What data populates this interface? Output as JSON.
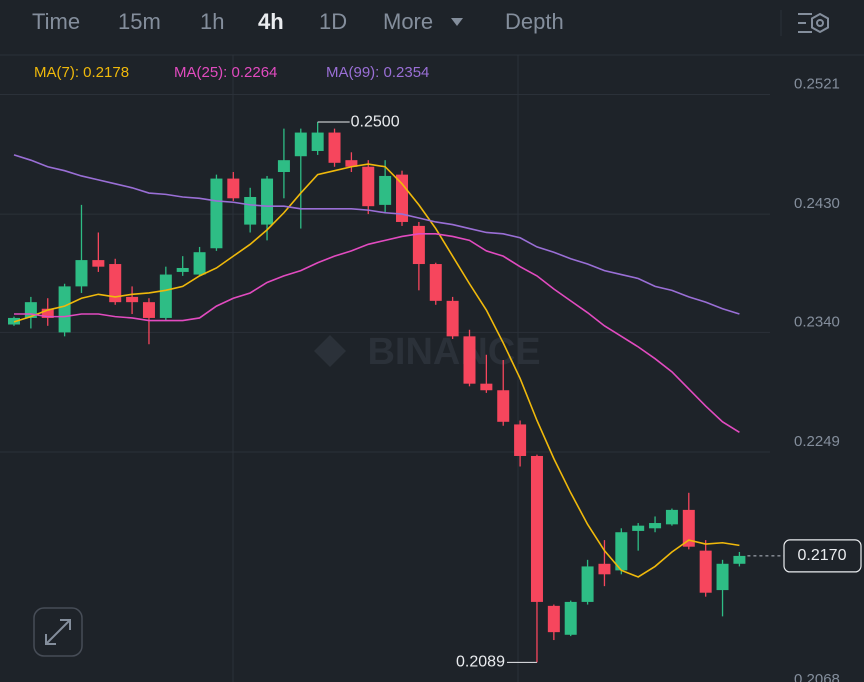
{
  "toolbar": {
    "items": [
      {
        "label": "Time",
        "active": false
      },
      {
        "label": "15m",
        "active": false
      },
      {
        "label": "1h",
        "active": false
      },
      {
        "label": "4h",
        "active": true
      },
      {
        "label": "1D",
        "active": false
      },
      {
        "label": "More",
        "active": false
      },
      {
        "label": "Depth",
        "active": false
      }
    ]
  },
  "watermark": "BINANCE",
  "chart_data": {
    "type": "candlestick",
    "up_color": "#2ebd85",
    "down_color": "#f6465d",
    "open": [
      0.2346,
      0.2351,
      0.2358,
      0.234,
      0.2375,
      0.2395,
      0.2392,
      0.2367,
      0.2363,
      0.2351,
      0.2386,
      0.2384,
      0.2404,
      0.2457,
      0.2422,
      0.2422,
      0.2462,
      0.2474,
      0.2478,
      0.2492,
      0.2471,
      0.2466,
      0.2437,
      0.246,
      0.2421,
      0.2392,
      0.2364,
      0.2337,
      0.2301,
      0.2296,
      0.227,
      0.2246,
      0.2132,
      0.211,
      0.2135,
      0.2164,
      0.2159,
      0.2189,
      0.2191,
      0.2194,
      0.2205,
      0.2174,
      0.2144,
      0.2164
    ],
    "high": [
      0.2352,
      0.2367,
      0.2366,
      0.2377,
      0.2437,
      0.2416,
      0.2396,
      0.2375,
      0.2366,
      0.239,
      0.2398,
      0.2405,
      0.246,
      0.2462,
      0.245,
      0.2459,
      0.2495,
      0.2495,
      0.25,
      0.2495,
      0.2477,
      0.2471,
      0.2471,
      0.2463,
      0.2424,
      0.2393,
      0.2367,
      0.2342,
      0.2323,
      0.2319,
      0.2273,
      0.2247,
      0.2133,
      0.2136,
      0.2167,
      0.2182,
      0.2191,
      0.2195,
      0.22,
      0.2206,
      0.2218,
      0.2182,
      0.2167,
      0.2173
    ],
    "low": [
      0.2345,
      0.2343,
      0.2345,
      0.2337,
      0.237,
      0.2386,
      0.2361,
      0.2354,
      0.2331,
      0.2349,
      0.2383,
      0.2383,
      0.2402,
      0.244,
      0.2416,
      0.241,
      0.2442,
      0.2419,
      0.2475,
      0.2466,
      0.2462,
      0.243,
      0.2431,
      0.2421,
      0.2372,
      0.2361,
      0.2335,
      0.2299,
      0.2294,
      0.2269,
      0.2238,
      0.2089,
      0.2106,
      0.2109,
      0.2133,
      0.2147,
      0.2156,
      0.2174,
      0.2188,
      0.2193,
      0.2175,
      0.2139,
      0.2124,
      0.2162
    ],
    "close": [
      0.2351,
      0.2363,
      0.2351,
      0.2375,
      0.2395,
      0.239,
      0.2363,
      0.2363,
      0.2351,
      0.2384,
      0.2389,
      0.2401,
      0.2457,
      0.2442,
      0.2443,
      0.2457,
      0.2471,
      0.2492,
      0.2492,
      0.2469,
      0.2466,
      0.2436,
      0.2459,
      0.2424,
      0.2392,
      0.2364,
      0.2337,
      0.2301,
      0.2296,
      0.2272,
      0.2246,
      0.2135,
      0.2112,
      0.2135,
      0.2162,
      0.2156,
      0.2188,
      0.2193,
      0.2195,
      0.2205,
      0.2177,
      0.2142,
      0.2164,
      0.217
    ],
    "series": [
      {
        "name": "MA(7): 0.2178",
        "color": "#f0b90b",
        "values": [
          0.2348,
          0.2352,
          0.2357,
          0.236,
          0.2366,
          0.2369,
          0.2367,
          0.2369,
          0.237,
          0.2372,
          0.2375,
          0.2383,
          0.2389,
          0.2398,
          0.2407,
          0.2418,
          0.2431,
          0.2446,
          0.246,
          0.2463,
          0.2466,
          0.2468,
          0.2466,
          0.2453,
          0.2437,
          0.2419,
          0.2398,
          0.2377,
          0.2357,
          0.2332,
          0.2305,
          0.2273,
          0.2244,
          0.2218,
          0.2194,
          0.2174,
          0.2159,
          0.2154,
          0.2162,
          0.2173,
          0.2182,
          0.2179,
          0.218,
          0.2178
        ]
      },
      {
        "name": "MA(25): 0.2264",
        "color": "#e24bc0",
        "values": [
          0.2354,
          0.2354,
          0.2352,
          0.2352,
          0.2354,
          0.2354,
          0.2352,
          0.2351,
          0.2349,
          0.2349,
          0.2349,
          0.2351,
          0.236,
          0.2366,
          0.237,
          0.2378,
          0.2383,
          0.2387,
          0.2393,
          0.2398,
          0.2402,
          0.2407,
          0.241,
          0.2413,
          0.2415,
          0.2415,
          0.2413,
          0.241,
          0.2402,
          0.2398,
          0.239,
          0.2383,
          0.2373,
          0.2364,
          0.2355,
          0.2345,
          0.2337,
          0.2329,
          0.232,
          0.231,
          0.2297,
          0.2284,
          0.2272,
          0.2264
        ]
      },
      {
        "name": "MA(99): 0.2354",
        "color": "#9a6fd6",
        "values": [
          0.2475,
          0.2471,
          0.2466,
          0.2463,
          0.2459,
          0.2456,
          0.2453,
          0.245,
          0.2446,
          0.2445,
          0.2443,
          0.2442,
          0.244,
          0.2439,
          0.2437,
          0.2436,
          0.2436,
          0.2434,
          0.2434,
          0.2434,
          0.2434,
          0.2433,
          0.2431,
          0.243,
          0.2427,
          0.2424,
          0.2422,
          0.2419,
          0.2416,
          0.2415,
          0.2412,
          0.2405,
          0.2401,
          0.2396,
          0.2392,
          0.2387,
          0.2384,
          0.2381,
          0.2375,
          0.2372,
          0.2367,
          0.2363,
          0.2358,
          0.2354
        ]
      }
    ],
    "annotations": [
      {
        "value": 0.25,
        "label": "0.2500"
      },
      {
        "value": 0.2089,
        "label": "0.2089"
      }
    ],
    "last_price": {
      "value": 0.217,
      "label": "0.2170"
    },
    "ylim": [
      0.2068,
      0.2551
    ],
    "yticks": [
      0.2521,
      {
        "value": 0.243,
        "label": "0.2430"
      },
      {
        "value": 0.234,
        "label": "0.2340"
      },
      0.2249,
      0.2068
    ],
    "grid": true
  }
}
